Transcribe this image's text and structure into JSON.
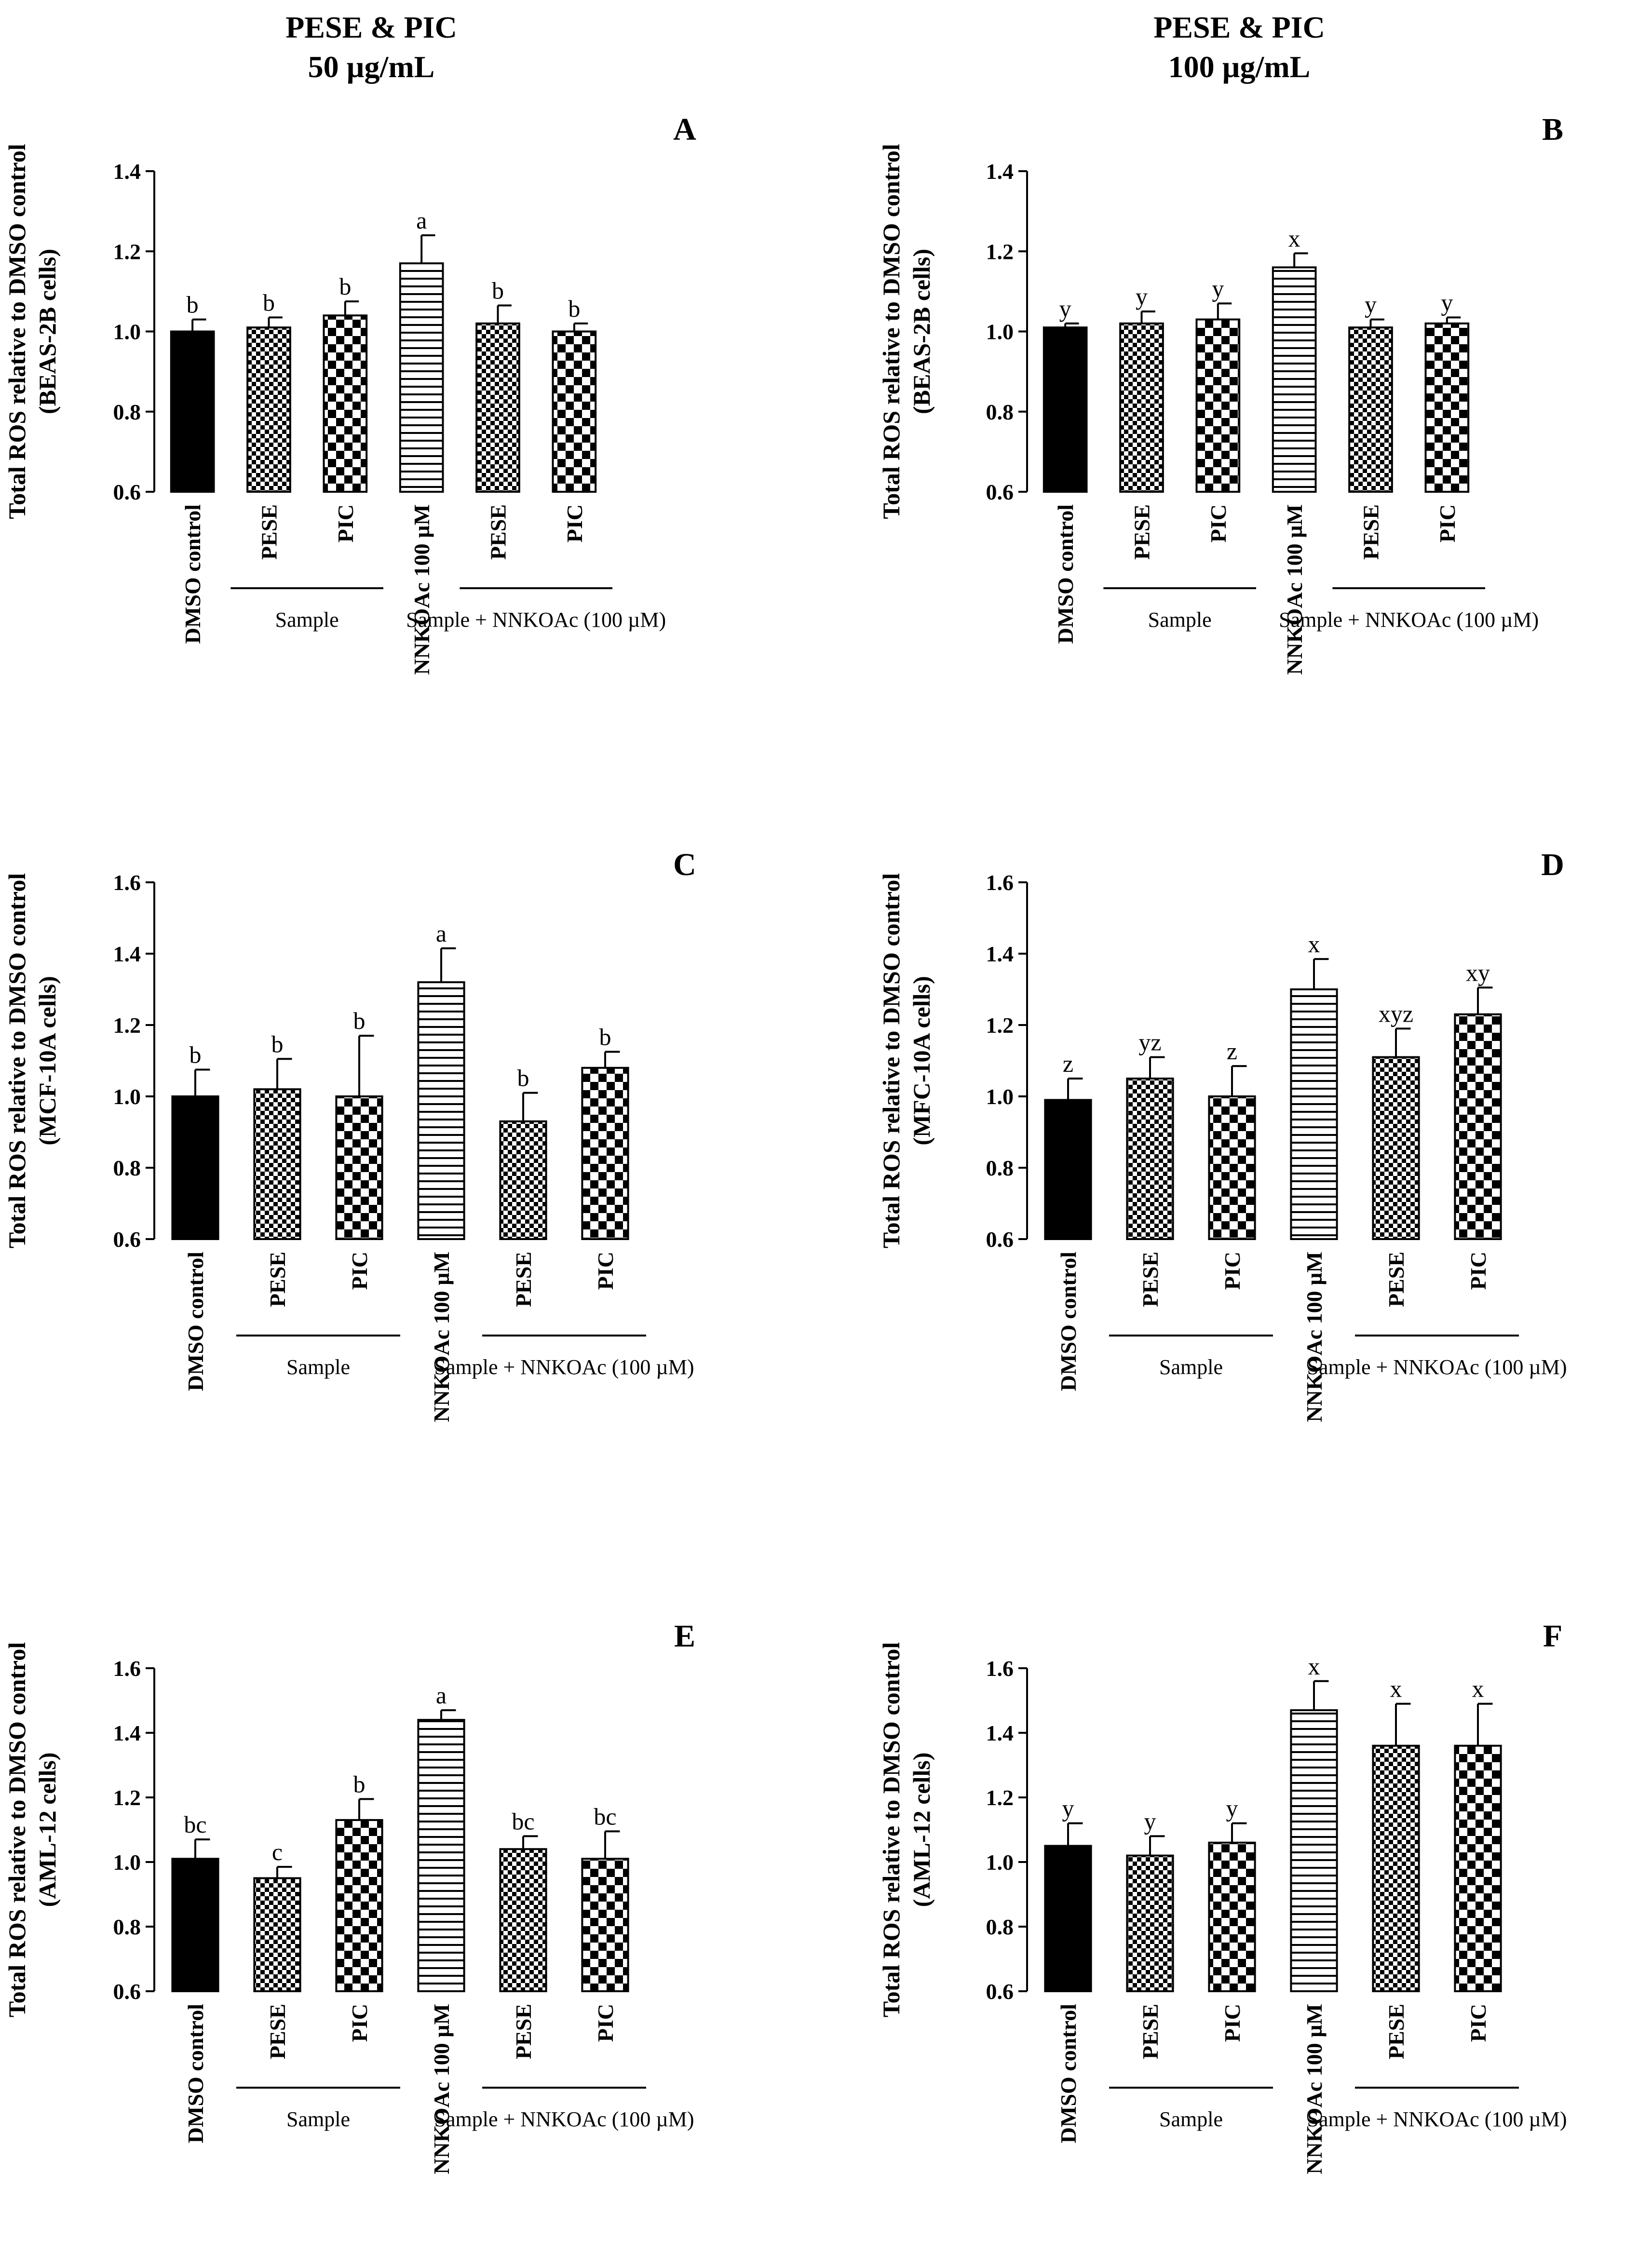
{
  "columns": [
    {
      "title_line1": "PESE & PIC",
      "title_line2": "50 µg/mL"
    },
    {
      "title_line1": "PESE & PIC",
      "title_line2": "100 µg/mL"
    }
  ],
  "colors": {
    "bar_stroke": "#000000",
    "solid_fill": "#000000",
    "background": "#ffffff"
  },
  "chart_data": [
    {
      "panel": "A",
      "type": "bar",
      "ylabel_line1": "Total ROS relative to DMSO control",
      "ylabel_line2": "(BEAS-2B cells)",
      "ylim": [
        0.6,
        1.4
      ],
      "yticks": [
        "0.6",
        "0.8",
        "1.0",
        "1.2",
        "1.4"
      ],
      "categories": [
        "DMSO control",
        "PESE",
        "PIC",
        "NNKOAc 100 µM",
        "PESE",
        "PIC"
      ],
      "patterns": [
        "solid",
        "fine-check",
        "check",
        "hlines",
        "fine-check",
        "check"
      ],
      "values": [
        1.0,
        1.01,
        1.04,
        1.17,
        1.02,
        1.0
      ],
      "errors": [
        0.03,
        0.025,
        0.035,
        0.07,
        0.045,
        0.02
      ],
      "labels": [
        "b",
        "b",
        "b",
        "a",
        "b",
        "b"
      ],
      "groups": [
        {
          "label": "Sample",
          "from": 1,
          "to": 2
        },
        {
          "label": "Sample + NNKOAc (100  µM)",
          "from": 4,
          "to": 5
        }
      ]
    },
    {
      "panel": "B",
      "type": "bar",
      "ylabel_line1": "Total ROS relative to DMSO control",
      "ylabel_line2": "(BEAS-2B cells)",
      "ylim": [
        0.6,
        1.4
      ],
      "yticks": [
        "0.6",
        "0.8",
        "1.0",
        "1.2",
        "1.4"
      ],
      "categories": [
        "DMSO control",
        "PESE",
        "PIC",
        "NNKOAc 100 µM",
        "PESE",
        "PIC"
      ],
      "patterns": [
        "solid",
        "fine-check",
        "check",
        "hlines",
        "fine-check",
        "check"
      ],
      "values": [
        1.01,
        1.02,
        1.03,
        1.16,
        1.01,
        1.02
      ],
      "errors": [
        0.01,
        0.03,
        0.04,
        0.035,
        0.02,
        0.015
      ],
      "labels": [
        "y",
        "y",
        "y",
        "x",
        "y",
        "y"
      ],
      "groups": [
        {
          "label": "Sample",
          "from": 1,
          "to": 2
        },
        {
          "label": "Sample + NNKOAc (100  µM)",
          "from": 4,
          "to": 5
        }
      ]
    },
    {
      "panel": "C",
      "type": "bar",
      "ylabel_line1": "Total ROS relative to DMSO control",
      "ylabel_line2": "(MCF-10A cells)",
      "ylim": [
        0.6,
        1.6
      ],
      "yticks": [
        "0.6",
        "0.8",
        "1.0",
        "1.2",
        "1.4",
        "1.6"
      ],
      "categories": [
        "DMSO control",
        "PESE",
        "PIC",
        "NNKOAc 100 µM",
        "PESE",
        "PIC"
      ],
      "patterns": [
        "solid",
        "fine-check",
        "check",
        "hlines",
        "fine-check",
        "check"
      ],
      "values": [
        1.0,
        1.02,
        1.0,
        1.32,
        0.93,
        1.08
      ],
      "errors": [
        0.075,
        0.085,
        0.17,
        0.095,
        0.08,
        0.045
      ],
      "labels": [
        "b",
        "b",
        "b",
        "a",
        "b",
        "b"
      ],
      "groups": [
        {
          "label": "Sample",
          "from": 1,
          "to": 2
        },
        {
          "label": "Sample + NNKOAc (100  µM)",
          "from": 4,
          "to": 5
        }
      ]
    },
    {
      "panel": "D",
      "type": "bar",
      "ylabel_line1": "Total ROS relative to DMSO control",
      "ylabel_line2": "(MFC-10A cells)",
      "ylim": [
        0.6,
        1.6
      ],
      "yticks": [
        "0.6",
        "0.8",
        "1.0",
        "1.2",
        "1.4",
        "1.6"
      ],
      "categories": [
        "DMSO control",
        "PESE",
        "PIC",
        "NNKOAc 100 µM",
        "PESE",
        "PIC"
      ],
      "patterns": [
        "solid",
        "fine-check",
        "check",
        "hlines",
        "fine-check",
        "check"
      ],
      "values": [
        0.99,
        1.05,
        1.0,
        1.3,
        1.11,
        1.23
      ],
      "errors": [
        0.06,
        0.06,
        0.085,
        0.085,
        0.08,
        0.075
      ],
      "labels": [
        "z",
        "yz",
        "z",
        "x",
        "xyz",
        "xy"
      ],
      "groups": [
        {
          "label": "Sample",
          "from": 1,
          "to": 2
        },
        {
          "label": "Sample + NNKOAc (100  µM)",
          "from": 4,
          "to": 5
        }
      ]
    },
    {
      "panel": "E",
      "type": "bar",
      "ylabel_line1": "Total ROS relative to DMSO control",
      "ylabel_line2": "(AML-12 cells)",
      "ylim": [
        0.6,
        1.6
      ],
      "yticks": [
        "0.6",
        "0.8",
        "1.0",
        "1.2",
        "1.4",
        "1.6"
      ],
      "categories": [
        "DMSO control",
        "PESE",
        "PIC",
        "NNKOAc 100 µM",
        "PESE",
        "PIC"
      ],
      "patterns": [
        "solid",
        "fine-check",
        "check",
        "hlines",
        "fine-check",
        "check"
      ],
      "values": [
        1.01,
        0.95,
        1.13,
        1.44,
        1.04,
        1.01
      ],
      "errors": [
        0.06,
        0.035,
        0.065,
        0.03,
        0.04,
        0.085
      ],
      "labels": [
        "bc",
        "c",
        "b",
        "a",
        "bc",
        "bc"
      ],
      "groups": [
        {
          "label": "Sample",
          "from": 1,
          "to": 2
        },
        {
          "label": "Sample + NNKOAc (100  µM)",
          "from": 4,
          "to": 5
        }
      ]
    },
    {
      "panel": "F",
      "type": "bar",
      "ylabel_line1": "Total ROS relative to DMSO control",
      "ylabel_line2": "(AML-12 cells)",
      "ylim": [
        0.6,
        1.6
      ],
      "yticks": [
        "0.6",
        "0.8",
        "1.0",
        "1.2",
        "1.4",
        "1.6"
      ],
      "categories": [
        "DMSO control",
        "PESE",
        "PIC",
        "NNKOAc 100 µM",
        "PESE",
        "PIC"
      ],
      "patterns": [
        "solid",
        "fine-check",
        "check",
        "hlines",
        "fine-check",
        "check"
      ],
      "values": [
        1.05,
        1.02,
        1.06,
        1.47,
        1.36,
        1.36
      ],
      "errors": [
        0.07,
        0.06,
        0.06,
        0.09,
        0.13,
        0.13
      ],
      "labels": [
        "y",
        "y",
        "y",
        "x",
        "x",
        "x"
      ],
      "groups": [
        {
          "label": "Sample",
          "from": 1,
          "to": 2
        },
        {
          "label": "Sample + NNKOAc (100  µM)",
          "from": 4,
          "to": 5
        }
      ]
    }
  ]
}
